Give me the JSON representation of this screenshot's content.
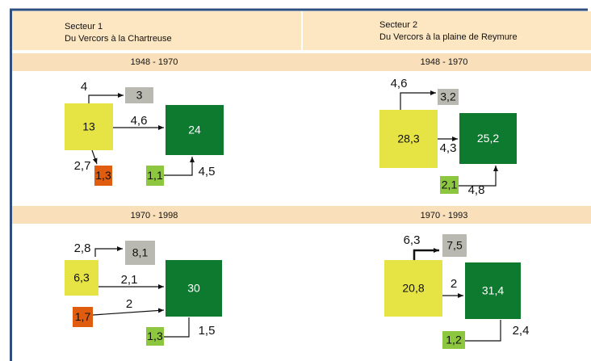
{
  "sectors": [
    {
      "name": "Secteur 1",
      "subtitle": "Du Vercors à la Chartreuse"
    },
    {
      "name": "Secteur 2",
      "subtitle": "Du Vercors à la plaine de Reymure"
    }
  ],
  "panels": [
    {
      "period": "1948 - 1970",
      "nodes": [
        "13",
        "3",
        "24",
        "1,3",
        "1,1"
      ],
      "flows": [
        "4",
        "4,6",
        "2,7",
        "4,5"
      ]
    },
    {
      "period": "1948 - 1970",
      "nodes": [
        "28,3",
        "3,2",
        "25,2",
        "2,1"
      ],
      "flows": [
        "4,6",
        "4,3",
        "4,8"
      ]
    },
    {
      "period": "1970 - 1998",
      "nodes": [
        "8,1",
        "6,3",
        "30",
        "1,7",
        "1,3"
      ],
      "flows": [
        "2,8",
        "2,1",
        "2",
        "1,5"
      ]
    },
    {
      "period": "1970 - 1993",
      "nodes": [
        "7,5",
        "20,8",
        "31,4",
        "1,2"
      ],
      "flows": [
        "6,3",
        "2",
        "2,4"
      ]
    }
  ]
}
